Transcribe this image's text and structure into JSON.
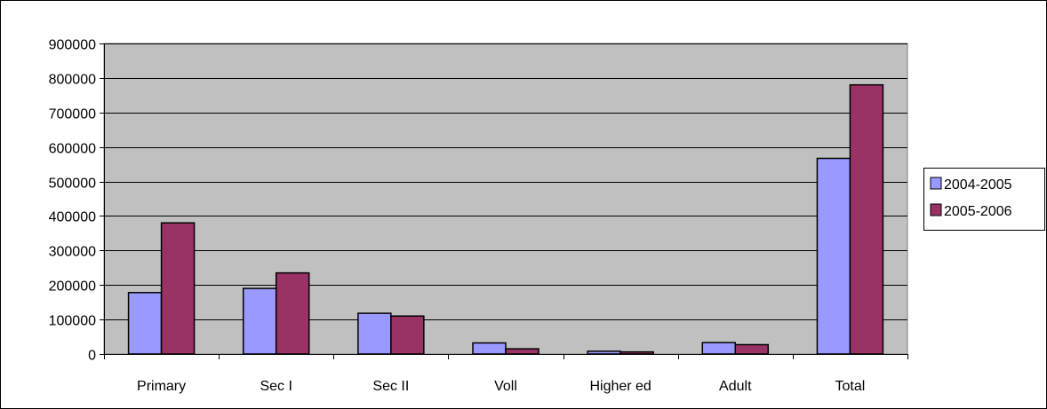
{
  "chart_data": {
    "type": "bar",
    "categories": [
      "Primary",
      "Sec I",
      "Sec II",
      "Voll",
      "Higher ed",
      "Adult",
      "Total"
    ],
    "series": [
      {
        "name": "2004-2005",
        "color": "#9999FF",
        "values": [
          178000,
          190000,
          118000,
          32000,
          8000,
          33000,
          567000
        ]
      },
      {
        "name": "2005-2006",
        "color": "#993366",
        "values": [
          380000,
          235000,
          110000,
          15000,
          6000,
          27000,
          780000
        ]
      }
    ],
    "title": "",
    "xlabel": "",
    "ylabel": "",
    "ylim": [
      0,
      900000
    ],
    "yticks": [
      "0",
      "100000",
      "200000",
      "300000",
      "400000",
      "500000",
      "600000",
      "700000",
      "800000",
      "900000"
    ],
    "grid": true,
    "plot_background": "#C0C0C0",
    "legend_position": "right"
  }
}
